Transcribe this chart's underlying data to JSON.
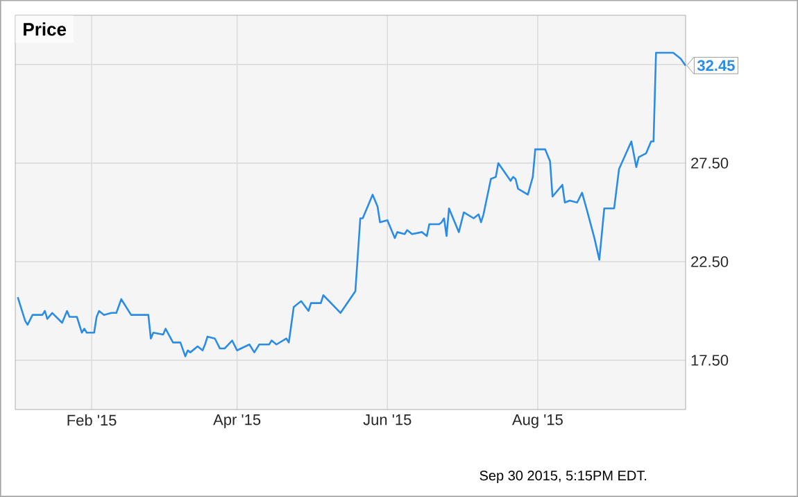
{
  "chart_data": {
    "type": "line",
    "title": "Price",
    "x": [
      "2015-01-02",
      "2015-01-05",
      "2015-01-06",
      "2015-01-08",
      "2015-01-12",
      "2015-01-13",
      "2015-01-14",
      "2015-01-16",
      "2015-01-20",
      "2015-01-22",
      "2015-01-23",
      "2015-01-26",
      "2015-01-28",
      "2015-01-29",
      "2015-01-30",
      "2015-02-02",
      "2015-02-03",
      "2015-02-04",
      "2015-02-06",
      "2015-02-09",
      "2015-02-11",
      "2015-02-13",
      "2015-02-17",
      "2015-02-24",
      "2015-02-25",
      "2015-02-26",
      "2015-03-02",
      "2015-03-03",
      "2015-03-06",
      "2015-03-09",
      "2015-03-11",
      "2015-03-12",
      "2015-03-13",
      "2015-03-16",
      "2015-03-18",
      "2015-03-19",
      "2015-03-20",
      "2015-03-23",
      "2015-03-25",
      "2015-03-27",
      "2015-03-30",
      "2015-04-01",
      "2015-04-06",
      "2015-04-08",
      "2015-04-10",
      "2015-04-14",
      "2015-04-15",
      "2015-04-17",
      "2015-04-21",
      "2015-04-22",
      "2015-04-24",
      "2015-04-27",
      "2015-04-30",
      "2015-05-01",
      "2015-05-05",
      "2015-05-06",
      "2015-05-13",
      "2015-05-19",
      "2015-05-21",
      "2015-05-22",
      "2015-05-26",
      "2015-05-28",
      "2015-05-29",
      "2015-06-01",
      "2015-06-04",
      "2015-06-05",
      "2015-06-08",
      "2015-06-09",
      "2015-06-11",
      "2015-06-15",
      "2015-06-17",
      "2015-06-18",
      "2015-06-22",
      "2015-06-23",
      "2015-06-24",
      "2015-06-25",
      "2015-06-26",
      "2015-06-30",
      "2015-07-02",
      "2015-07-06",
      "2015-07-08",
      "2015-07-09",
      "2015-07-10",
      "2015-07-13",
      "2015-07-15",
      "2015-07-16",
      "2015-07-21",
      "2015-07-22",
      "2015-07-23",
      "2015-07-24",
      "2015-07-28",
      "2015-07-30",
      "2015-07-31",
      "2015-08-04",
      "2015-08-06",
      "2015-08-07",
      "2015-08-11",
      "2015-08-12",
      "2015-08-14",
      "2015-08-17",
      "2015-08-19",
      "2015-08-21",
      "2015-08-24",
      "2015-08-26",
      "2015-08-28",
      "2015-09-01",
      "2015-09-03",
      "2015-09-08",
      "2015-09-10",
      "2015-09-11",
      "2015-09-14",
      "2015-09-16",
      "2015-09-17",
      "2015-09-18",
      "2015-09-23",
      "2015-09-25",
      "2015-09-28",
      "2015-09-30"
    ],
    "series": [
      {
        "color": "#2b8ce6",
        "values": [
          20.7,
          19.5,
          19.3,
          19.8,
          19.8,
          20.0,
          19.6,
          19.9,
          19.4,
          20.0,
          19.7,
          19.7,
          18.9,
          19.1,
          18.9,
          18.9,
          19.7,
          20.0,
          19.8,
          19.9,
          19.9,
          20.6,
          19.8,
          19.8,
          18.6,
          18.9,
          18.8,
          19.1,
          18.4,
          18.4,
          17.7,
          18.0,
          17.9,
          18.2,
          18.0,
          18.3,
          18.7,
          18.6,
          18.1,
          18.1,
          18.5,
          18.0,
          18.3,
          17.9,
          18.3,
          18.3,
          18.5,
          18.3,
          18.6,
          18.4,
          20.2,
          20.5,
          20.0,
          20.4,
          20.4,
          20.8,
          19.9,
          21.0,
          24.7,
          24.7,
          25.9,
          25.3,
          24.5,
          24.6,
          23.7,
          24.0,
          23.9,
          24.1,
          23.9,
          24.0,
          23.8,
          24.4,
          24.4,
          24.5,
          24.7,
          23.8,
          25.2,
          24.0,
          25.0,
          24.7,
          24.9,
          24.5,
          24.9,
          26.7,
          26.8,
          27.5,
          26.6,
          26.8,
          26.7,
          26.2,
          25.9,
          26.8,
          28.2,
          28.2,
          27.6,
          25.8,
          26.4,
          25.5,
          25.6,
          25.5,
          26.0,
          25.1,
          23.7,
          22.6,
          25.2,
          25.2,
          27.2,
          28.6,
          27.3,
          27.8,
          28.0,
          28.6,
          28.6,
          33.1,
          33.1,
          33.1,
          32.8,
          32.45
        ]
      }
    ],
    "xlim": [
      "2015-01-01",
      "2015-09-30"
    ],
    "xticks": [
      {
        "value": "2015-02-01",
        "label": "Feb '15"
      },
      {
        "value": "2015-04-01",
        "label": "Apr '15"
      },
      {
        "value": "2015-06-01",
        "label": "Jun '15"
      },
      {
        "value": "2015-08-01",
        "label": "Aug '15"
      }
    ],
    "ylim": [
      15,
      35
    ],
    "yticks": [
      {
        "value": 17.5,
        "label": "17.50"
      },
      {
        "value": 22.5,
        "label": "22.50"
      },
      {
        "value": 27.5,
        "label": "27.50"
      },
      {
        "value": 32.5,
        "label": null
      }
    ],
    "grid": true,
    "annotations": [
      {
        "text": "32.45",
        "x": "2015-09-30",
        "y": 32.45
      },
      "Sep 30 2015, 5:15PM EDT."
    ]
  }
}
